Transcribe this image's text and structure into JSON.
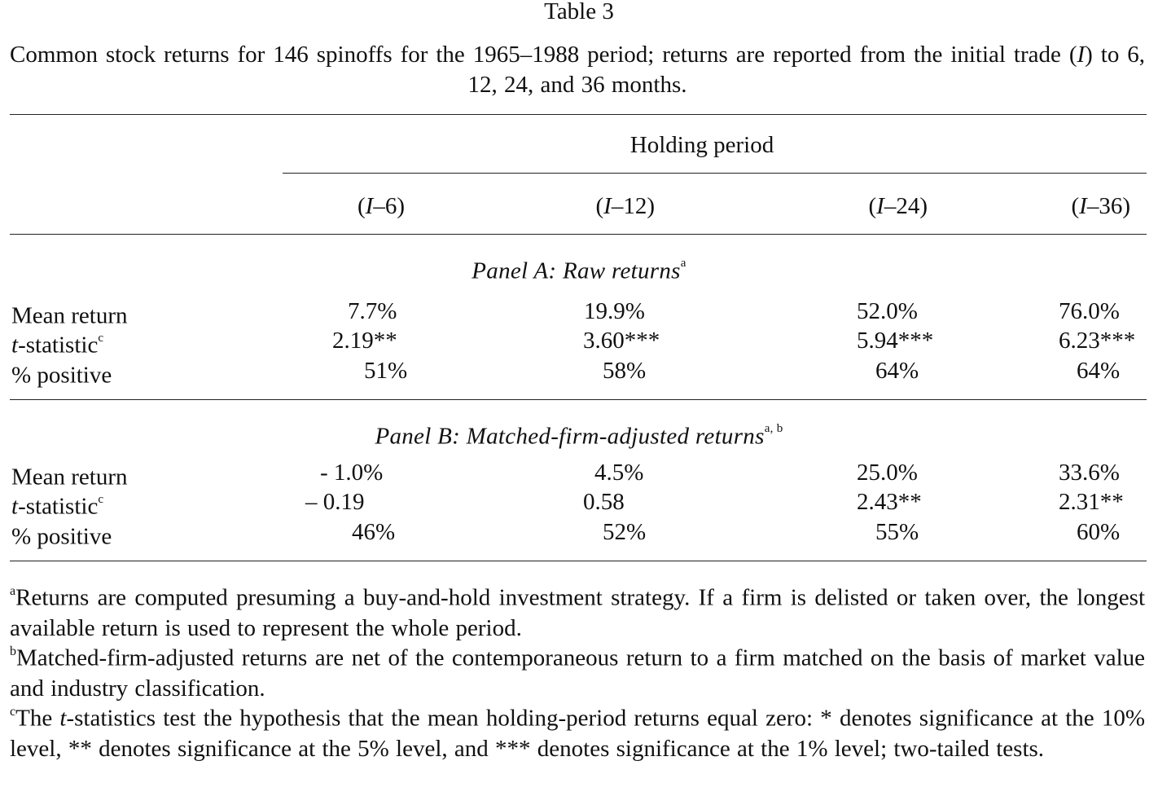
{
  "table": {
    "title": "Table 3",
    "caption_part1": "Common stock returns for 146 spinoffs for the 1965–1988 period; returns are reported from the initial trade (",
    "caption_italic": "I",
    "caption_part2": ") to 6, 12, 24, and 36 months.",
    "spanner": "Holding period",
    "columns": [
      {
        "open": "(",
        "italic": "I",
        "rest": "–6)"
      },
      {
        "open": "(",
        "italic": "I",
        "rest": "–12)"
      },
      {
        "open": "(",
        "italic": "I",
        "rest": "–24)"
      },
      {
        "open": "(",
        "italic": "I",
        "rest": "–36)"
      }
    ],
    "panel_a": {
      "title": "Panel A: Raw returns",
      "title_sup": "a",
      "rows": [
        {
          "label": "Mean return",
          "label_italic": "",
          "label_sup": "",
          "values": [
            "7.7%",
            "19.9%",
            "52.0%",
            "76.0%"
          ]
        },
        {
          "label": "-statistic",
          "label_italic": "t",
          "label_sup": "c",
          "values": [
            "2.19**",
            "3.60***",
            "5.94***",
            "6.23***"
          ]
        },
        {
          "label": "% positive",
          "label_italic": "",
          "label_sup": "",
          "values": [
            "51%",
            "58%",
            "64%",
            "64%"
          ]
        }
      ]
    },
    "panel_b": {
      "title": "Panel B: Matched-firm-adjusted returns",
      "title_sup": "a, b",
      "rows": [
        {
          "label": "Mean return",
          "label_italic": "",
          "label_sup": "",
          "values": [
            "- 1.0%",
            "4.5%",
            "25.0%",
            "33.6%"
          ]
        },
        {
          "label": "-statistic",
          "label_italic": "t",
          "label_sup": "c",
          "values": [
            "– 0.19",
            "0.58",
            "2.43**",
            "2.31**"
          ]
        },
        {
          "label": "% positive",
          "label_italic": "",
          "label_sup": "",
          "values": [
            "46%",
            "52%",
            "55%",
            "60%"
          ]
        }
      ]
    },
    "footnotes": {
      "a_mark": "a",
      "a_text": "Returns are computed presuming a buy-and-hold investment strategy. If a firm is delisted or taken over, the longest available return is used to represent the whole period.",
      "b_mark": "b",
      "b_text": "Matched-firm-adjusted returns are net of the contemporaneous return to a firm matched on the basis of market value and industry classification.",
      "c_mark": "c",
      "c_text_1": "The ",
      "c_italic": "t",
      "c_text_2": "-statistics test the hypothesis that the mean holding-period returns equal zero: * denotes significance at the 10% level, ** denotes significance at the 5% level, and *** denotes significance at the 1% level; two-tailed tests."
    }
  }
}
